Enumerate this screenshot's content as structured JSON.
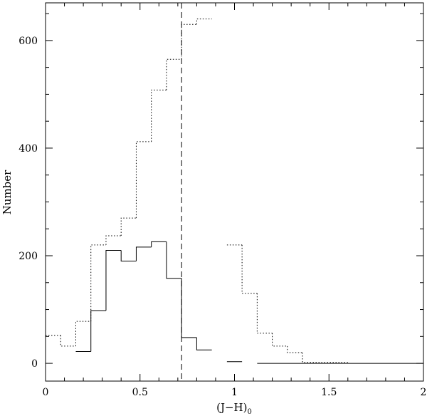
{
  "chart_data": {
    "type": "histogram",
    "xlabel": "(J−H)",
    "xlabel_subscript": "0",
    "ylabel": "Number",
    "xlim": [
      0,
      2
    ],
    "ylim": [
      -33,
      670
    ],
    "x_ticks": [
      "0",
      "0.5",
      "1",
      "1.5",
      "2"
    ],
    "y_ticks": [
      "0",
      "200",
      "400",
      "600"
    ],
    "x_tick_values": [
      0,
      0.5,
      1,
      1.5,
      2
    ],
    "y_tick_values": [
      0,
      200,
      400,
      600
    ],
    "reference_line_x": 0.72,
    "series": [
      {
        "style": "solid",
        "bins": [
          [
            0.16,
            0.24,
            22
          ],
          [
            0.24,
            0.32,
            98
          ],
          [
            0.32,
            0.4,
            210
          ],
          [
            0.4,
            0.48,
            190
          ],
          [
            0.48,
            0.56,
            216
          ],
          [
            0.56,
            0.64,
            226
          ],
          [
            0.64,
            0.72,
            158
          ],
          [
            0.72,
            0.8,
            48
          ],
          [
            0.8,
            0.88,
            25
          ],
          [
            0.96,
            1.04,
            3
          ],
          [
            1.12,
            2.0,
            0
          ]
        ]
      },
      {
        "style": "dotted",
        "bins": [
          [
            0.0,
            0.08,
            52
          ],
          [
            0.08,
            0.16,
            32
          ],
          [
            0.16,
            0.24,
            78
          ],
          [
            0.24,
            0.32,
            220
          ],
          [
            0.32,
            0.4,
            237
          ],
          [
            0.4,
            0.48,
            270
          ],
          [
            0.48,
            0.56,
            412
          ],
          [
            0.56,
            0.64,
            508
          ],
          [
            0.64,
            0.72,
            565
          ],
          [
            0.72,
            0.8,
            630
          ],
          [
            0.8,
            0.88,
            640
          ],
          [
            0.96,
            1.04,
            220
          ],
          [
            1.04,
            1.12,
            130
          ],
          [
            1.12,
            1.2,
            56
          ],
          [
            1.2,
            1.28,
            32
          ],
          [
            1.28,
            1.36,
            20
          ],
          [
            1.36,
            1.6,
            2
          ]
        ]
      }
    ]
  }
}
